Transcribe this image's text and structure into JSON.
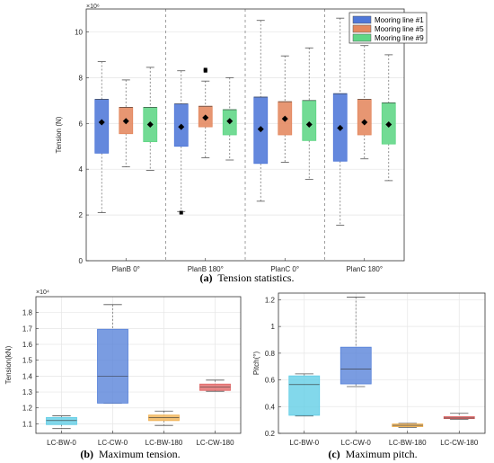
{
  "chart_data": [
    {
      "type": "box",
      "caption_letter": "(a)",
      "caption_text": "Tension statistics.",
      "ylabel": "Tension (N)",
      "exponent": "×10⁶",
      "ylim": [
        0,
        11
      ],
      "yticks": [
        "0",
        "2",
        "4",
        "6",
        "8",
        "10"
      ],
      "categories": [
        "PlanB 0°",
        "PlanB 180°",
        "PlanC 0°",
        "PlanC 180°"
      ],
      "grid": true,
      "legend_position": "top-right",
      "series": [
        {
          "name": "Mooring line #1",
          "color": "#4f77d8",
          "boxes": [
            {
              "min": 2.1,
              "q1": 4.7,
              "median": 7.05,
              "q3": 7.05,
              "max": 8.7,
              "mean": 6.05,
              "outliers": []
            },
            {
              "min": 2.15,
              "q1": 5.0,
              "median": 6.85,
              "q3": 6.85,
              "max": 8.3,
              "mean": 5.85,
              "outliers": [
                2.1
              ]
            },
            {
              "min": 2.6,
              "q1": 4.25,
              "median": 7.15,
              "q3": 7.15,
              "max": 10.5,
              "mean": 5.75,
              "outliers": []
            },
            {
              "min": 1.55,
              "q1": 4.35,
              "median": 7.3,
              "q3": 7.3,
              "max": 10.6,
              "mean": 5.8,
              "outliers": []
            }
          ]
        },
        {
          "name": "Mooring line #5",
          "color": "#e4885e",
          "boxes": [
            {
              "min": 4.1,
              "q1": 5.55,
              "median": 6.7,
              "q3": 6.7,
              "max": 7.9,
              "mean": 6.1,
              "outliers": []
            },
            {
              "min": 4.5,
              "q1": 5.85,
              "median": 6.75,
              "q3": 6.75,
              "max": 7.85,
              "mean": 6.25,
              "outliers": [
                8.3,
                8.35
              ]
            },
            {
              "min": 4.3,
              "q1": 5.5,
              "median": 6.95,
              "q3": 6.95,
              "max": 8.95,
              "mean": 6.2,
              "outliers": []
            },
            {
              "min": 4.45,
              "q1": 5.5,
              "median": 7.05,
              "q3": 7.05,
              "max": 9.4,
              "mean": 6.05,
              "outliers": []
            }
          ]
        },
        {
          "name": "Mooring line #9",
          "color": "#5fd685",
          "boxes": [
            {
              "min": 3.95,
              "q1": 5.2,
              "median": 6.7,
              "q3": 6.7,
              "max": 8.45,
              "mean": 5.95,
              "outliers": []
            },
            {
              "min": 4.4,
              "q1": 5.5,
              "median": 6.6,
              "q3": 6.6,
              "max": 8.0,
              "mean": 6.1,
              "outliers": []
            },
            {
              "min": 3.55,
              "q1": 5.25,
              "median": 7.0,
              "q3": 7.0,
              "max": 9.3,
              "mean": 5.95,
              "outliers": []
            },
            {
              "min": 3.5,
              "q1": 5.1,
              "median": 6.9,
              "q3": 6.9,
              "max": 9.0,
              "mean": 5.95,
              "outliers": []
            }
          ]
        }
      ]
    },
    {
      "type": "box",
      "caption_letter": "(b)",
      "caption_text": "Maximum tension.",
      "ylabel": "Tension(kN)",
      "exponent": "×10⁴",
      "ylim": [
        1.04,
        1.9
      ],
      "yticks": [
        "1.1",
        "1.2",
        "1.3",
        "1.4",
        "1.5",
        "1.6",
        "1.7",
        "1.8"
      ],
      "categories": [
        "LC-BW-0",
        "LC-CW-0",
        "LC-BW-180",
        "LC-CW-180"
      ],
      "grid": true,
      "boxes": [
        {
          "color": "#5fcde6",
          "min": 1.07,
          "q1": 1.095,
          "median": 1.12,
          "q3": 1.14,
          "max": 1.15
        },
        {
          "color": "#5580d9",
          "min": 1.23,
          "q1": 1.23,
          "median": 1.4,
          "q3": 1.695,
          "max": 1.85
        },
        {
          "color": "#f0b050",
          "min": 1.09,
          "q1": 1.12,
          "median": 1.14,
          "q3": 1.155,
          "max": 1.18
        },
        {
          "color": "#e06464",
          "min": 1.305,
          "q1": 1.31,
          "median": 1.33,
          "q3": 1.35,
          "max": 1.375
        }
      ]
    },
    {
      "type": "box",
      "caption_letter": "(c)",
      "caption_text": "Maximum pitch.",
      "ylabel": "Pitch(°)",
      "exponent": "",
      "ylim": [
        0.2,
        1.25
      ],
      "yticks": [
        "0.2",
        "0.4",
        "0.6",
        "0.8",
        "1",
        "1.2"
      ],
      "categories": [
        "LC-BW-0",
        "LC-CW-0",
        "LC-BW-180",
        "LC-CW-180"
      ],
      "grid": true,
      "boxes": [
        {
          "color": "#5fcde6",
          "min": 0.33,
          "q1": 0.335,
          "median": 0.565,
          "q3": 0.63,
          "max": 0.645
        },
        {
          "color": "#5580d9",
          "min": 0.55,
          "q1": 0.57,
          "median": 0.68,
          "q3": 0.845,
          "max": 1.22
        },
        {
          "color": "#f0b050",
          "min": 0.245,
          "q1": 0.25,
          "median": 0.26,
          "q3": 0.27,
          "max": 0.275
        },
        {
          "color": "#e06464",
          "min": 0.305,
          "q1": 0.31,
          "median": 0.315,
          "q3": 0.325,
          "max": 0.35
        }
      ]
    }
  ]
}
